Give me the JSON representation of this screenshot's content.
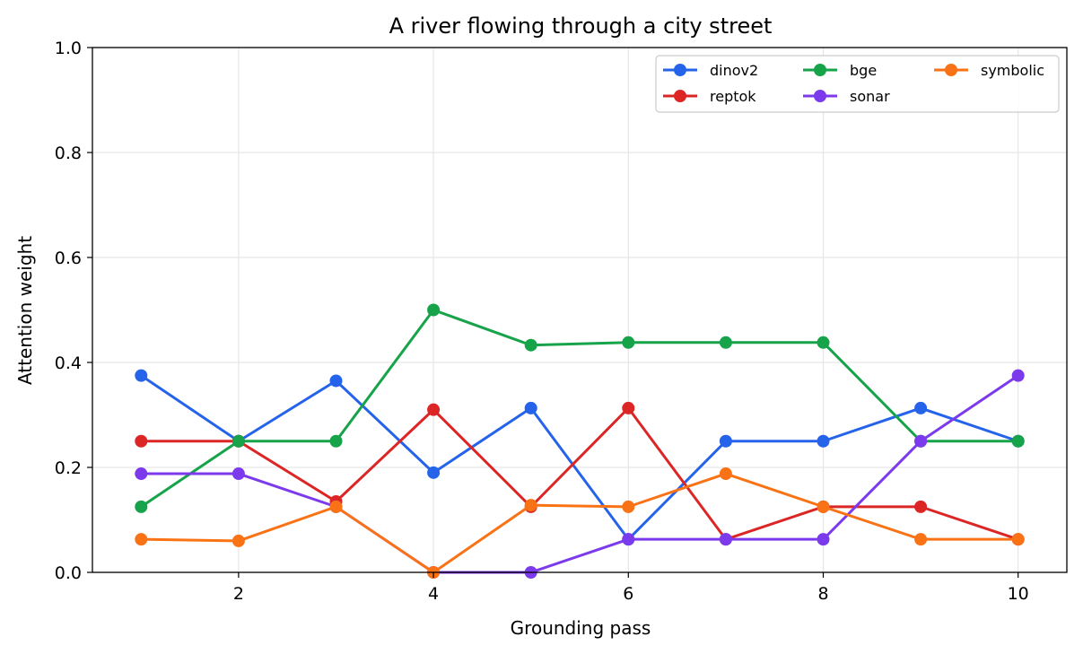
{
  "chart_data": {
    "type": "line",
    "title": "A river flowing through a city street",
    "xlabel": "Grounding pass",
    "ylabel": "Attention weight",
    "x": [
      1,
      2,
      3,
      4,
      5,
      6,
      7,
      8,
      9,
      10
    ],
    "xlim": [
      0.5,
      10.5
    ],
    "ylim": [
      0,
      1.0
    ],
    "xticks": [
      2,
      4,
      6,
      8,
      10
    ],
    "yticks": [
      0.0,
      0.2,
      0.4,
      0.6,
      0.8,
      1.0
    ],
    "xtick_labels": [
      "2",
      "4",
      "6",
      "8",
      "10"
    ],
    "ytick_labels": [
      "0.0",
      "0.2",
      "0.4",
      "0.6",
      "0.8",
      "1.0"
    ],
    "grid": true,
    "legend_position": "top-right",
    "series": [
      {
        "name": "dinov2",
        "color": "#2563eb",
        "values": [
          0.375,
          0.25,
          0.365,
          0.19,
          0.313,
          0.063,
          0.25,
          0.25,
          0.313,
          0.25
        ]
      },
      {
        "name": "reptok",
        "color": "#dc2626",
        "values": [
          0.25,
          0.25,
          0.135,
          0.31,
          0.125,
          0.313,
          0.063,
          0.125,
          0.125,
          0.063
        ]
      },
      {
        "name": "bge",
        "color": "#16a34a",
        "values": [
          0.125,
          0.25,
          0.25,
          0.5,
          0.433,
          0.438,
          0.438,
          0.438,
          0.25,
          0.25
        ]
      },
      {
        "name": "sonar",
        "color": "#7c3aed",
        "values": [
          0.188,
          0.188,
          0.125,
          0.0,
          0.0,
          0.063,
          0.063,
          0.063,
          0.25,
          0.375
        ]
      },
      {
        "name": "symbolic",
        "color": "#f97316",
        "values": [
          0.063,
          0.06,
          0.125,
          0.0,
          0.128,
          0.125,
          0.188,
          0.125,
          0.063,
          0.063
        ]
      }
    ]
  }
}
